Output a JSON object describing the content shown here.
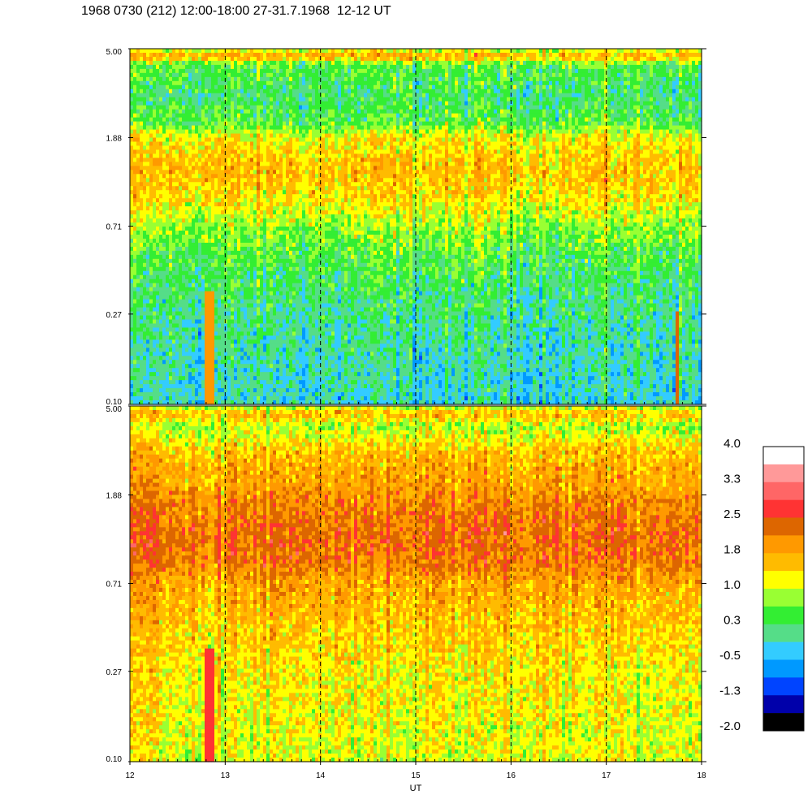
{
  "title": "1968 0730 (212) 12:00-18:00 27-31.7.1968  12-12 UT",
  "chart_data": [
    {
      "type": "heatmap",
      "panel": "upper",
      "xlim": [
        12,
        18
      ],
      "ylim": [
        0.1,
        5.0
      ],
      "yscale": "log",
      "ytick_labels": [
        "5.00",
        "1.88",
        "0.71",
        "0.27",
        "0.10"
      ],
      "ytick_values": [
        5.0,
        1.88,
        0.71,
        0.27,
        0.1
      ],
      "xtick_values": [
        12,
        13,
        14,
        15,
        16,
        17,
        18
      ],
      "gridlines_x": [
        13,
        14,
        15,
        16,
        17
      ],
      "frequency_profile": [
        {
          "f": 5.0,
          "level": 0.9
        },
        {
          "f": 4.6,
          "level": 1.8
        },
        {
          "f": 4.2,
          "level": 0.5
        },
        {
          "f": 3.0,
          "level": 0.2
        },
        {
          "f": 2.2,
          "level": 0.5
        },
        {
          "f": 1.88,
          "level": 1.2
        },
        {
          "f": 1.3,
          "level": 1.6
        },
        {
          "f": 0.95,
          "level": 1.3
        },
        {
          "f": 0.71,
          "level": 0.8
        },
        {
          "f": 0.5,
          "level": 0.4
        },
        {
          "f": 0.27,
          "level": 0.1
        },
        {
          "f": 0.1,
          "level": -0.2
        }
      ],
      "events": [
        {
          "t_start": 12.8,
          "t_end": 12.87,
          "f_min": 0.1,
          "f_max": 0.35,
          "level": 1.9
        },
        {
          "t_start": 17.73,
          "t_end": 17.76,
          "f_min": 0.1,
          "f_max": 0.28,
          "level": 2.4
        }
      ]
    },
    {
      "type": "heatmap",
      "panel": "lower",
      "xlim": [
        12,
        18
      ],
      "ylim": [
        0.1,
        5.0
      ],
      "yscale": "log",
      "xlabel": "UT",
      "ytick_labels": [
        "5.00",
        "1.88",
        "0.71",
        "0.27",
        "0.10"
      ],
      "ytick_values": [
        5.0,
        1.88,
        0.71,
        0.27,
        0.1
      ],
      "xtick_labels": [
        "12",
        "13",
        "14",
        "15",
        "16",
        "17",
        "18"
      ],
      "xtick_values": [
        12,
        13,
        14,
        15,
        16,
        17,
        18
      ],
      "gridlines_x": [
        13,
        14,
        15,
        16,
        17
      ],
      "frequency_profile": [
        {
          "f": 5.0,
          "level": 0.8
        },
        {
          "f": 4.6,
          "level": 1.7
        },
        {
          "f": 4.0,
          "level": 0.9
        },
        {
          "f": 3.0,
          "level": 1.6
        },
        {
          "f": 2.0,
          "level": 1.9
        },
        {
          "f": 1.75,
          "level": 2.1
        },
        {
          "f": 1.2,
          "level": 2.3
        },
        {
          "f": 0.9,
          "level": 2.2
        },
        {
          "f": 0.71,
          "level": 1.8
        },
        {
          "f": 0.4,
          "level": 1.5
        },
        {
          "f": 0.27,
          "level": 1.3
        },
        {
          "f": 0.1,
          "level": 1.1
        }
      ],
      "events": [
        {
          "t_start": 12.78,
          "t_end": 12.88,
          "f_min": 0.1,
          "f_max": 0.35,
          "level": 2.8
        }
      ]
    }
  ],
  "colorbar": {
    "tick_labels": [
      "4.0",
      "3.3",
      "2.5",
      "1.8",
      "1.0",
      "0.3",
      "-0.5",
      "-1.3",
      "-2.0"
    ],
    "tick_values": [
      4.0,
      3.3,
      2.5,
      1.8,
      1.0,
      0.3,
      -0.5,
      -1.3,
      -2.0
    ],
    "range": [
      -2.0,
      4.0
    ],
    "colors_top_to_bottom": [
      "#ffffff",
      "#ff9999",
      "#ff6666",
      "#ff3333",
      "#dd6600",
      "#ff9900",
      "#ffbb00",
      "#ffff00",
      "#99ff33",
      "#33ee33",
      "#55dd88",
      "#33ccff",
      "#0099ff",
      "#0044ff",
      "#0000aa",
      "#000000"
    ]
  }
}
